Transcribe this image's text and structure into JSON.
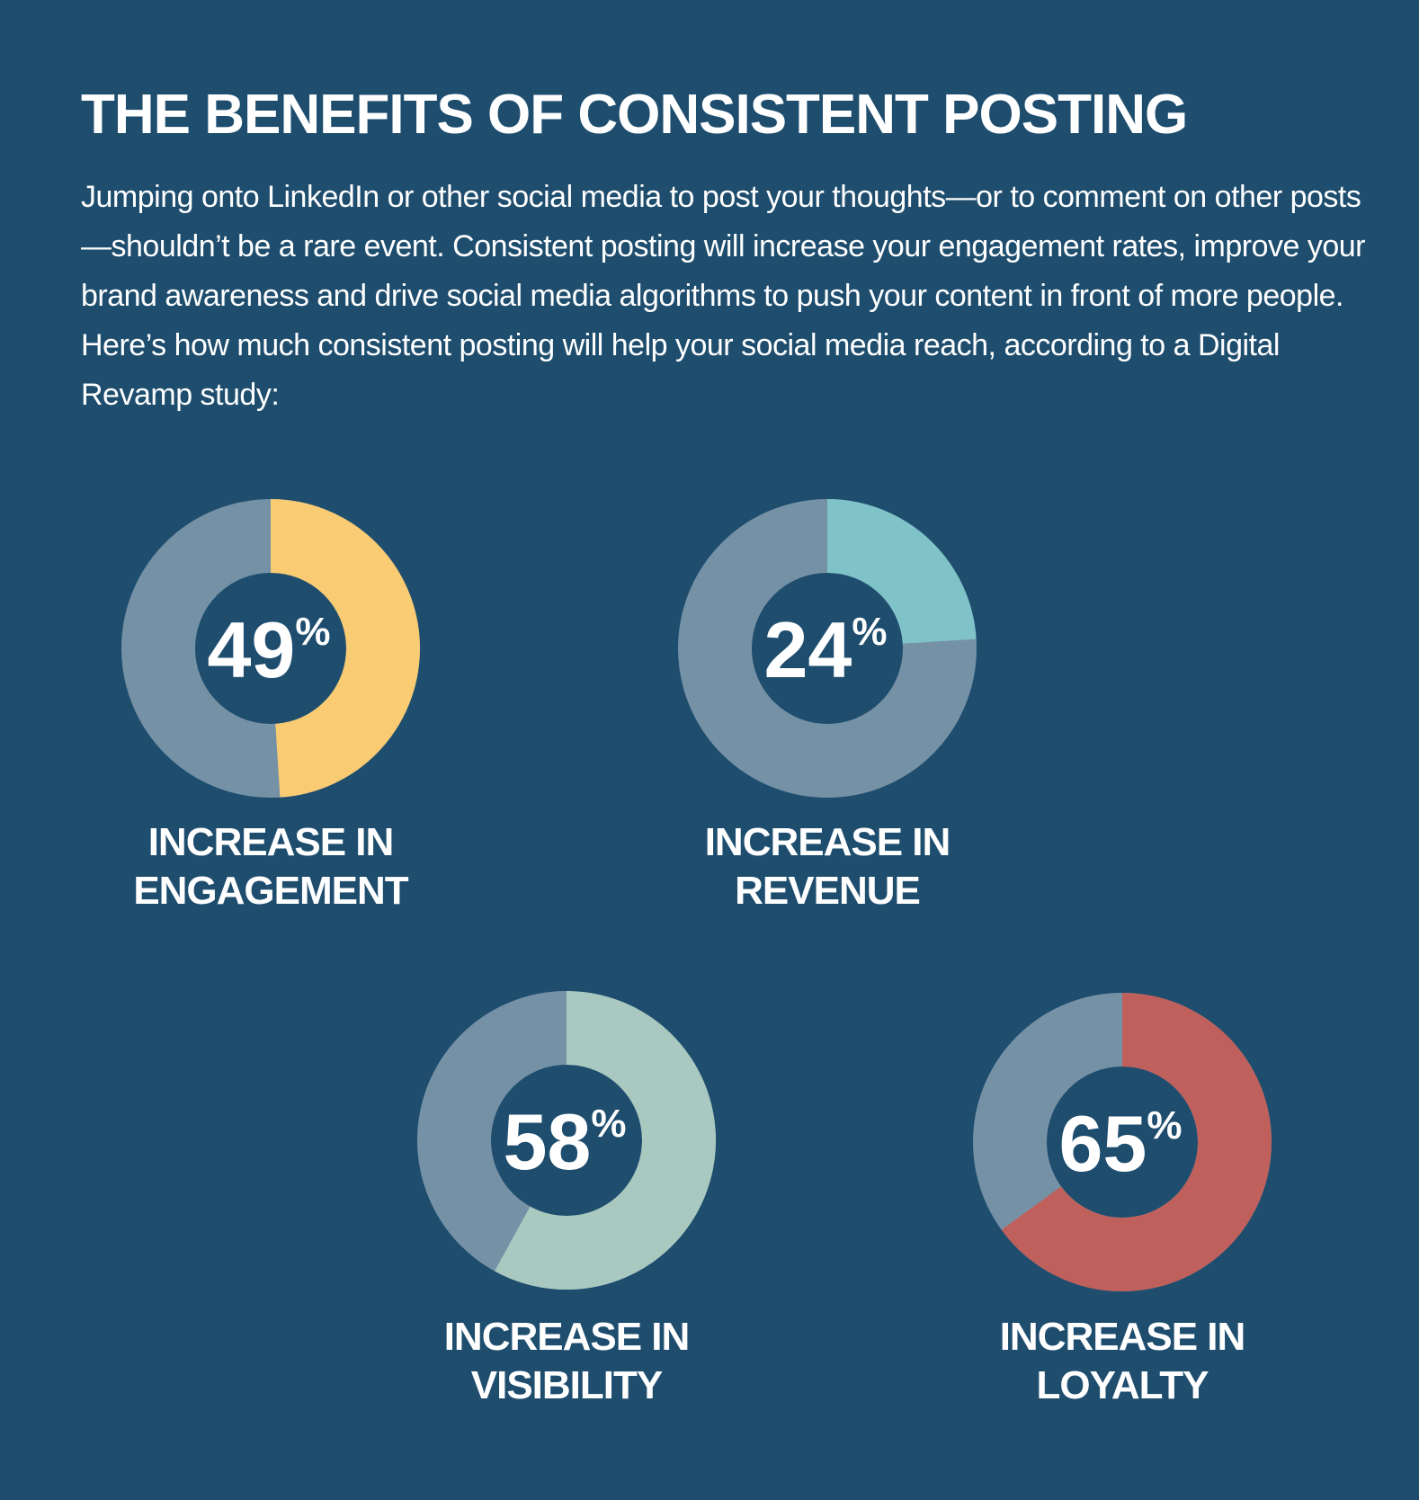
{
  "title": "THE BENEFITS OF CONSISTENT POSTING",
  "intro": "Jumping onto LinkedIn or other social media to post your thoughts—or to comment on other posts—shouldn’t be a rare event. Consistent posting will increase your engagement rates, improve your brand awareness and drive social media algorithms to push your content in front of more people. Here’s how much consistent posting will help your social media reach, according to a Digital Revamp study:",
  "chart_data": [
    {
      "type": "donut",
      "title": "INCREASE IN ENGAGEMENT",
      "values": [
        49
      ],
      "value_labels": [
        "49%"
      ],
      "color": "#f9cb72",
      "track_color": "#7591a6"
    },
    {
      "type": "donut",
      "title": "INCREASE IN REVENUE",
      "values": [
        24
      ],
      "value_labels": [
        "24%"
      ],
      "color": "#7fc3c9",
      "track_color": "#7591a6"
    },
    {
      "type": "donut",
      "title": "INCREASE IN VISIBILITY",
      "values": [
        58
      ],
      "value_labels": [
        "58%"
      ],
      "color": "#a9c9c0",
      "track_color": "#7591a6"
    },
    {
      "type": "donut",
      "title": "INCREASE IN LOYALTY",
      "values": [
        65
      ],
      "value_labels": [
        "65%"
      ],
      "color": "#c0605c",
      "track_color": "#7591a6"
    }
  ]
}
